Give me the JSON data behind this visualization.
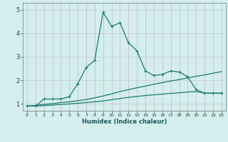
{
  "xlabel": "Humidex (Indice chaleur)",
  "bg_color": "#d4eeee",
  "line_color": "#1a7a6e",
  "grid_color": "#b8dada",
  "xlim": [
    -0.5,
    23.5
  ],
  "ylim": [
    0.7,
    5.3
  ],
  "xticks": [
    0,
    1,
    2,
    3,
    4,
    5,
    6,
    7,
    8,
    9,
    10,
    11,
    12,
    13,
    14,
    15,
    16,
    17,
    18,
    19,
    20,
    21,
    22,
    23
  ],
  "yticks": [
    1,
    2,
    3,
    4,
    5
  ],
  "line1_x": [
    0,
    1,
    2,
    3,
    4,
    5,
    6,
    7,
    8,
    9,
    10,
    11,
    12,
    13,
    14,
    15,
    16,
    17,
    18,
    19,
    20,
    21,
    22,
    23
  ],
  "line1_y": [
    0.9,
    0.9,
    1.2,
    1.2,
    1.2,
    1.3,
    1.85,
    2.55,
    2.85,
    4.9,
    4.3,
    4.45,
    3.6,
    3.25,
    2.4,
    2.2,
    2.25,
    2.4,
    2.35,
    2.15,
    1.6,
    1.45,
    1.45,
    1.45
  ],
  "line2_x": [
    0,
    1,
    2,
    3,
    4,
    5,
    6,
    7,
    8,
    9,
    10,
    11,
    12,
    13,
    14,
    15,
    16,
    17,
    18,
    19,
    20,
    21,
    22,
    23
  ],
  "line2_y": [
    0.9,
    0.93,
    0.97,
    1.0,
    1.05,
    1.08,
    1.13,
    1.18,
    1.25,
    1.33,
    1.42,
    1.52,
    1.6,
    1.68,
    1.75,
    1.83,
    1.9,
    1.97,
    2.03,
    2.1,
    2.17,
    2.23,
    2.3,
    2.37
  ],
  "line3_x": [
    0,
    1,
    2,
    3,
    4,
    5,
    6,
    7,
    8,
    9,
    10,
    11,
    12,
    13,
    14,
    15,
    16,
    17,
    18,
    19,
    20,
    21,
    22,
    23
  ],
  "line3_y": [
    0.9,
    0.9,
    0.92,
    0.94,
    0.97,
    0.99,
    1.02,
    1.05,
    1.08,
    1.12,
    1.17,
    1.22,
    1.27,
    1.31,
    1.35,
    1.38,
    1.41,
    1.44,
    1.47,
    1.5,
    1.52,
    1.45,
    1.45,
    1.45
  ]
}
